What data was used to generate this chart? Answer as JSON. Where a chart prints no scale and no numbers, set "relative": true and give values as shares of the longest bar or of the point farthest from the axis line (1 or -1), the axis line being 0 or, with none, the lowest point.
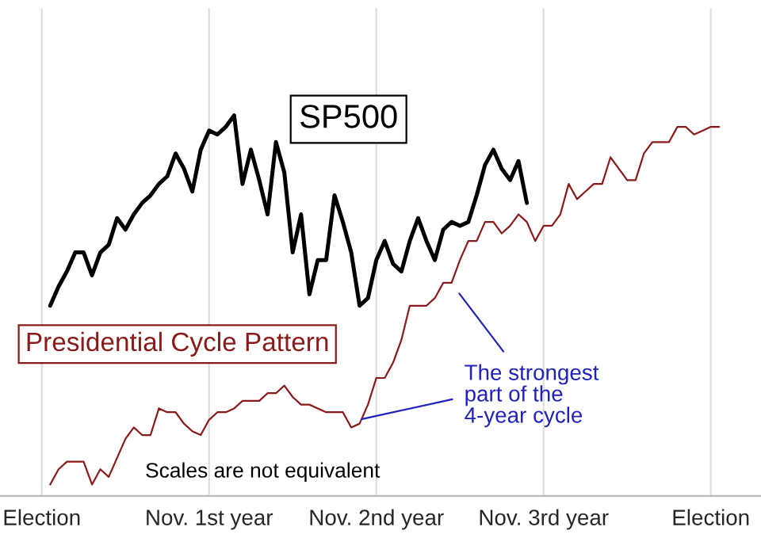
{
  "chart_data": {
    "type": "line",
    "relative": true,
    "grid": "x",
    "categories": [
      "Election",
      null,
      null,
      null,
      null,
      null,
      null,
      null,
      null,
      null,
      null,
      null,
      null,
      null,
      null,
      null,
      null,
      null,
      null,
      null,
      "Nov. 1st year",
      null,
      null,
      null,
      null,
      null,
      null,
      null,
      null,
      null,
      null,
      null,
      null,
      null,
      null,
      null,
      null,
      null,
      null,
      null,
      "Nov. 2nd year",
      null,
      null,
      null,
      null,
      null,
      null,
      null,
      null,
      null,
      null,
      null,
      null,
      null,
      null,
      null,
      null,
      null,
      null,
      null,
      "Nov. 3rd year",
      null,
      null,
      null,
      null,
      null,
      null,
      null,
      null,
      null,
      null,
      null,
      null,
      null,
      null,
      null,
      null,
      null,
      null,
      null,
      "Election",
      null
    ],
    "series": [
      {
        "name": "SP500",
        "color": "#000000",
        "values": [
          null,
          0.5,
          0.55,
          0.59,
          0.64,
          0.64,
          0.58,
          0.64,
          0.66,
          0.73,
          0.7,
          0.74,
          0.77,
          0.79,
          0.82,
          0.84,
          0.9,
          0.86,
          0.8,
          0.91,
          0.96,
          0.95,
          0.97,
          1.0,
          0.82,
          0.91,
          0.83,
          0.74,
          0.93,
          0.85,
          0.64,
          0.74,
          0.53,
          0.62,
          0.62,
          0.79,
          0.72,
          0.64,
          0.5,
          0.52,
          0.62,
          0.67,
          0.61,
          0.59,
          0.67,
          0.73,
          0.67,
          0.62,
          0.7,
          0.72,
          0.71,
          0.72,
          0.79,
          0.87,
          0.91,
          0.86,
          0.83,
          0.88,
          0.77,
          null,
          null,
          null,
          null,
          null,
          null,
          null,
          null,
          null,
          null,
          null,
          null,
          null,
          null,
          null,
          null,
          null,
          null,
          null,
          null,
          null,
          null,
          null
        ]
      },
      {
        "name": "Presidential Cycle Pattern",
        "color": "#8b1a1a",
        "values": [
          null,
          0.03,
          0.07,
          0.09,
          0.09,
          0.09,
          0.03,
          0.07,
          0.05,
          0.1,
          0.15,
          0.18,
          0.16,
          0.16,
          0.23,
          0.22,
          0.22,
          0.19,
          0.17,
          0.16,
          0.2,
          0.22,
          0.22,
          0.23,
          0.25,
          0.25,
          0.25,
          0.27,
          0.27,
          0.29,
          0.26,
          0.24,
          0.24,
          0.23,
          0.22,
          0.22,
          0.22,
          0.18,
          0.19,
          0.24,
          0.31,
          0.31,
          0.35,
          0.41,
          0.5,
          0.5,
          0.5,
          0.52,
          0.56,
          0.56,
          0.62,
          0.67,
          0.67,
          0.72,
          0.72,
          0.69,
          0.71,
          0.74,
          0.72,
          0.67,
          0.71,
          0.71,
          0.74,
          0.82,
          0.78,
          0.8,
          0.82,
          0.82,
          0.89,
          0.86,
          0.83,
          0.83,
          0.9,
          0.93,
          0.93,
          0.93,
          0.97,
          0.97,
          0.95,
          0.96,
          0.97,
          0.97
        ]
      }
    ],
    "annotations": [
      "The strongest\npart of the\n4-year cycle",
      "Scales are not equivalent"
    ]
  }
}
